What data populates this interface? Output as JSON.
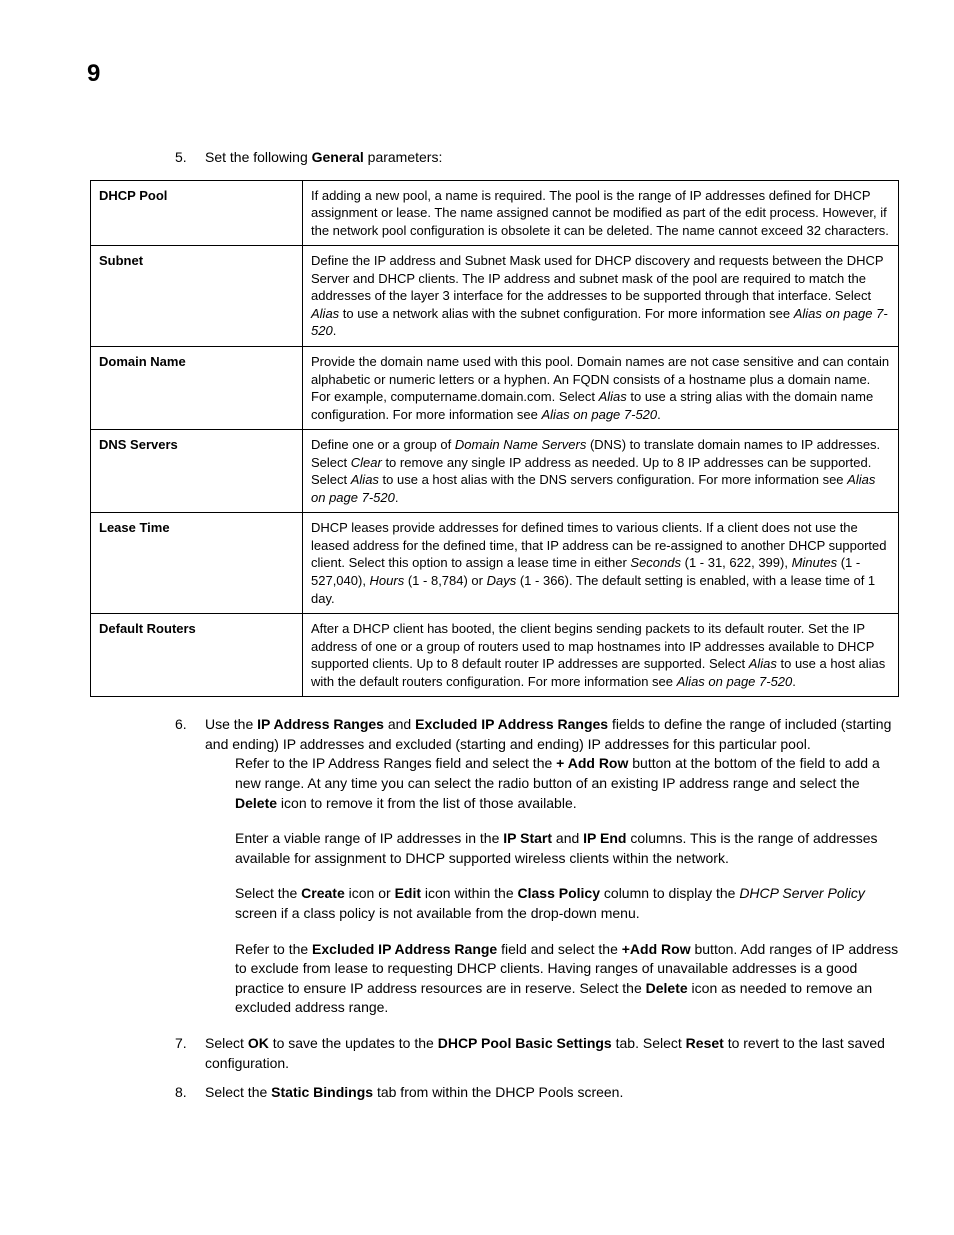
{
  "chapter_number": "9",
  "step5": {
    "num": "5.",
    "pre": "Set the following ",
    "bold": "General",
    "post": " parameters:"
  },
  "table": {
    "rows": [
      {
        "label": "DHCP Pool",
        "desc": "If adding a new pool, a name is required. The pool is the range of IP addresses defined for DHCP assignment or lease. The name assigned cannot be modified as part of the edit process. However, if the network pool configuration is obsolete it can be deleted. The name cannot exceed 32 characters."
      },
      {
        "label": "Subnet",
        "desc_pre": "Define the IP address and Subnet Mask used for DHCP discovery and requests between the DHCP Server and DHCP clients. The IP address and subnet mask of the pool are required to match the addresses of the layer 3 interface for the addresses to be supported through that interface. Select ",
        "i1": "Alias",
        "mid": " to use a network alias with the subnet configuration. For more information see ",
        "i2": "Alias on page 7-520",
        "post": "."
      },
      {
        "label": "Domain Name",
        "desc_pre": "Provide the domain name used with this pool. Domain names are not case sensitive and can contain alphabetic or numeric letters or a hyphen. An FQDN consists of a hostname plus a domain name. For example, computername.domain.com. Select ",
        "i1": "Alias",
        "mid": " to use a string alias with the domain name configuration. For more information see ",
        "i2": "Alias on page 7-520",
        "post": "."
      },
      {
        "label": "DNS Servers",
        "desc_pre": "Define one or a group of ",
        "i0": "Domain Name Servers",
        "mid0": " (DNS) to translate domain names to IP addresses. Select ",
        "i1": "Clear",
        "mid": " to remove any single IP address as needed. Up to 8 IP addresses can be supported. Select ",
        "i2": "Alias",
        "mid2": " to use a host alias with the DNS servers configuration. For more information see ",
        "i3": "Alias on page 7-520",
        "post": "."
      },
      {
        "label": "Lease Time",
        "desc_pre": "DHCP leases provide addresses for defined times to various clients. If a client does not use the leased address for the defined time, that IP address can be re-assigned to another DHCP supported client. Select this option to assign a lease time in either ",
        "i1": "Seconds",
        "mid": " (1 - 31, 622, 399), ",
        "i2": "Minutes",
        "mid2": " (1 - 527,040), ",
        "i3": "Hours",
        "mid3": " (1 - 8,784) or ",
        "i4": "Days",
        "post": " (1 - 366). The default setting is enabled, with a lease time of 1 day."
      },
      {
        "label": "Default Routers",
        "desc_pre": "After a DHCP client has booted, the client begins sending packets to its default router. Set the IP address of one or a group of routers used to map hostnames into IP addresses available to DHCP supported clients. Up to 8 default router IP addresses are supported. Select ",
        "i1": "Alias",
        "mid": " to use a host alias with the default routers configuration. For more information see ",
        "i2": "Alias on page 7-520",
        "post": "."
      }
    ]
  },
  "step6": {
    "num": "6.",
    "t1": "Use the ",
    "b1": "IP Address Ranges",
    "t2": " and ",
    "b2": "Excluded IP Address Ranges",
    "t3": " fields to define the range of included (starting and ending) IP addresses and excluded (starting and ending) IP addresses for this particular pool."
  },
  "p6a": {
    "t1": "Refer to the IP Address Ranges field and select the ",
    "b1": "+ Add Row",
    "t2": " button at the bottom of the field to add a new range. At any time you can select the radio button of an existing IP address range and select the ",
    "b2": "Delete",
    "t3": " icon to remove it from the list of those available."
  },
  "p6b": {
    "t1": "Enter a viable range of IP addresses in the ",
    "b1": "IP Start",
    "t2": " and ",
    "b2": "IP End",
    "t3": " columns. This is the range of addresses available for assignment to DHCP supported wireless clients within the network."
  },
  "p6c": {
    "t1": "Select the ",
    "b1": "Create",
    "t2": " icon or ",
    "b2": "Edit",
    "t3": " icon within the ",
    "b3": "Class Policy",
    "t4": " column to display the ",
    "i1": "DHCP Server Policy",
    "t5": " screen if a class policy is not available from the drop-down menu."
  },
  "p6d": {
    "t1": "Refer to the ",
    "b1": "Excluded IP Address Range",
    "t2": " field and select the ",
    "b2": "+Add Row",
    "t3": " button. Add ranges of IP address to exclude from lease to requesting DHCP clients. Having ranges of unavailable addresses is a good practice to ensure IP address resources are in reserve. Select the ",
    "b3": "Delete",
    "t4": " icon as needed to remove an excluded address range."
  },
  "step7": {
    "num": "7.",
    "t1": "Select ",
    "b1": "OK",
    "t2": " to save the updates to the ",
    "b2": "DHCP Pool Basic Settings",
    "t3": " tab. Select ",
    "b3": "Reset",
    "t4": " to revert to the last saved configuration."
  },
  "step8": {
    "num": "8.",
    "t1": "Select the ",
    "b1": "Static Bindings",
    "t2": " tab from within the DHCP Pools screen."
  }
}
